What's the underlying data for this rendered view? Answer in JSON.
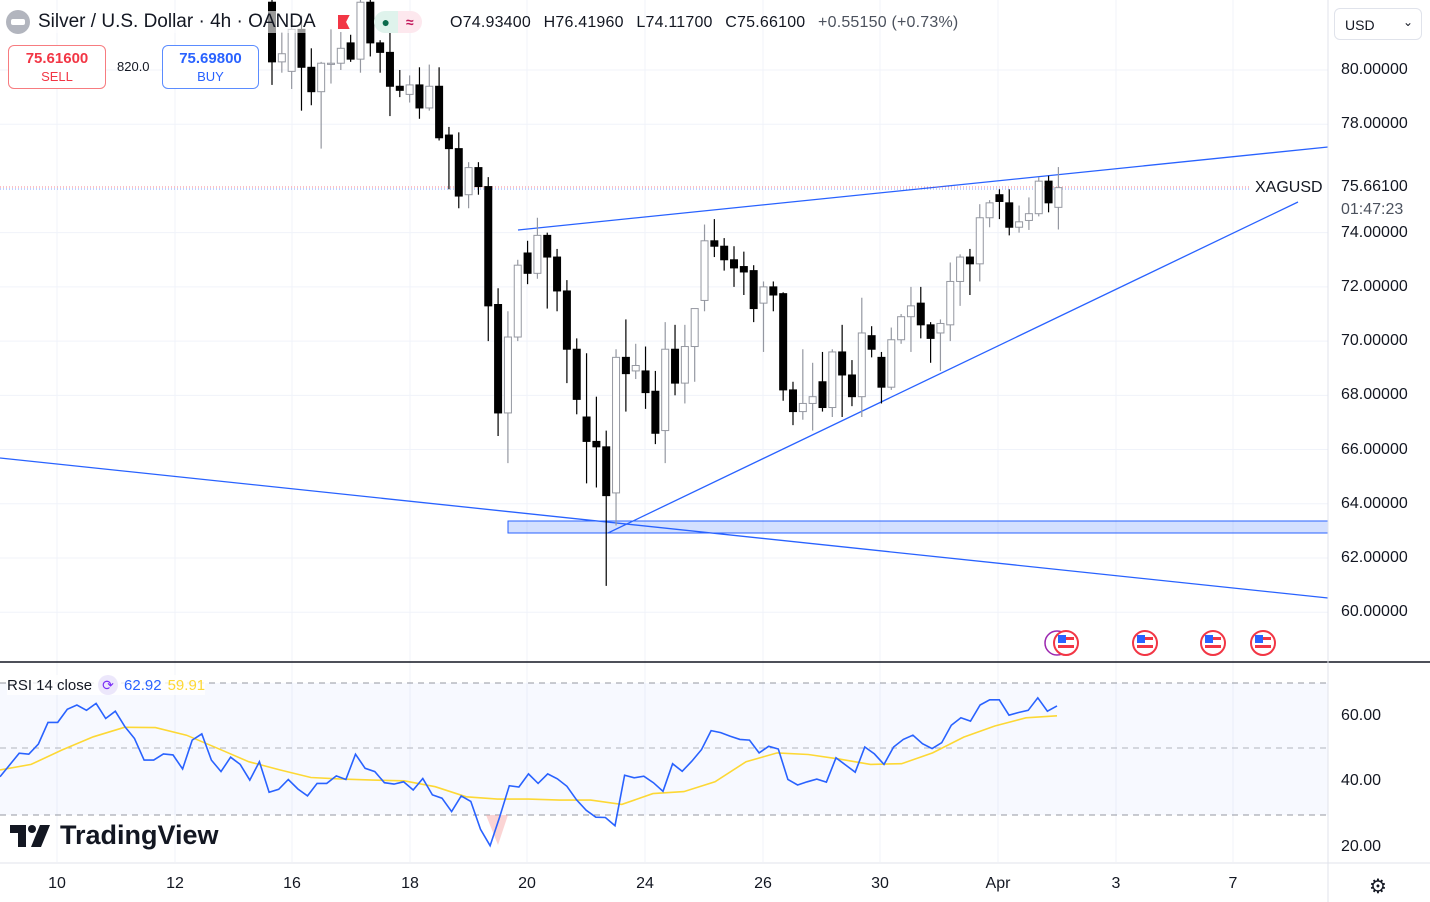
{
  "header": {
    "title": "Silver / U.S. Dollar · 4h · OANDA",
    "open": "O74.93400",
    "high": "H76.41960",
    "low": "L74.11700",
    "close": "C75.66100",
    "change": "+0.55150 (+0.73%)"
  },
  "trade": {
    "sell_price": "75.61600",
    "sell_label": "SELL",
    "spread": "820.0",
    "buy_price": "75.69800",
    "buy_label": "BUY"
  },
  "currency": "USD",
  "price_label": {
    "symbol": "XAGUSD",
    "price": "75.66100",
    "countdown": "01:47:23"
  },
  "rsi_legend": {
    "label": "RSI 14 close",
    "rsi_value": "62.92",
    "ma_value": "59.91"
  },
  "brand": "TradingView",
  "colors": {
    "up_fill": "#ffffff",
    "up_border": "#9598a1",
    "down": "#000000",
    "drawing": "#2962ff",
    "rsi": "#2962ff",
    "rsi_ma": "#fdd835"
  },
  "chart_data": [
    {
      "type": "candlestick",
      "title": "Silver / U.S. Dollar · 4h · OANDA",
      "y_ticks": [
        "80.00000",
        "78.00000",
        "74.00000",
        "72.00000",
        "70.00000",
        "68.00000",
        "66.00000",
        "64.00000",
        "62.00000",
        "60.00000"
      ],
      "y_tick_values": [
        80,
        78,
        74,
        72,
        70,
        68,
        66,
        64,
        62,
        60
      ],
      "x_ticks": [
        "10",
        "12",
        "16",
        "18",
        "20",
        "24",
        "26",
        "30",
        "Apr",
        "3",
        "7"
      ],
      "ylim": [
        59.2,
        82.6
      ],
      "ohlc": [
        [
          82.5,
          82.6,
          79.45,
          80.3
        ],
        [
          80.3,
          81.4,
          79.9,
          80.6
        ],
        [
          79.95,
          82.0,
          79.3,
          81.5
        ],
        [
          81.5,
          82.0,
          78.5,
          80.1
        ],
        [
          80.1,
          80.8,
          78.7,
          79.2
        ],
        [
          79.2,
          80.3,
          77.1,
          80.25
        ],
        [
          80.25,
          81.5,
          79.5,
          80.25
        ],
        [
          80.25,
          81.4,
          80.0,
          80.8
        ],
        [
          81.0,
          81.3,
          80.3,
          80.4
        ],
        [
          80.4,
          82.6,
          79.9,
          82.5
        ],
        [
          82.5,
          82.6,
          80.5,
          81.0
        ],
        [
          81.0,
          81.1,
          79.9,
          80.65
        ],
        [
          80.65,
          81.5,
          78.3,
          79.4
        ],
        [
          79.4,
          80.0,
          79.0,
          79.25
        ],
        [
          79.1,
          79.8,
          78.8,
          79.45
        ],
        [
          79.45,
          80.1,
          78.2,
          78.6
        ],
        [
          78.6,
          80.2,
          78.5,
          79.4
        ],
        [
          79.4,
          80.1,
          77.4,
          77.5
        ],
        [
          77.6,
          77.9,
          75.6,
          77.1
        ],
        [
          77.1,
          77.7,
          74.9,
          75.35
        ],
        [
          75.4,
          76.6,
          74.9,
          76.4
        ],
        [
          76.4,
          76.6,
          75.4,
          75.7
        ],
        [
          75.7,
          76.05,
          70.0,
          71.3
        ],
        [
          71.35,
          71.95,
          66.5,
          67.35
        ],
        [
          67.35,
          71.1,
          65.5,
          70.15
        ],
        [
          70.15,
          73.0,
          70.0,
          72.8
        ],
        [
          73.25,
          73.7,
          72.1,
          72.5
        ],
        [
          72.5,
          74.55,
          72.3,
          73.9
        ],
        [
          73.9,
          74.0,
          71.2,
          73.1
        ],
        [
          73.1,
          73.4,
          71.1,
          71.85
        ],
        [
          71.85,
          72.25,
          68.45,
          69.7
        ],
        [
          69.7,
          70.1,
          67.3,
          67.85
        ],
        [
          67.2,
          69.55,
          64.75,
          66.3
        ],
        [
          66.3,
          67.95,
          64.6,
          66.1
        ],
        [
          66.1,
          66.7,
          60.97,
          64.3
        ],
        [
          64.4,
          69.7,
          63.2,
          69.4
        ],
        [
          69.4,
          70.8,
          67.4,
          68.8
        ],
        [
          68.9,
          69.9,
          68.6,
          69.1
        ],
        [
          68.9,
          69.8,
          67.5,
          68.1
        ],
        [
          68.15,
          68.9,
          66.2,
          66.6
        ],
        [
          66.7,
          70.7,
          65.5,
          69.7
        ],
        [
          69.7,
          70.6,
          68.0,
          68.45
        ],
        [
          68.45,
          70.6,
          67.7,
          69.8
        ],
        [
          69.8,
          71.2,
          68.5,
          71.2
        ],
        [
          71.5,
          74.3,
          71.1,
          73.7
        ],
        [
          73.7,
          74.5,
          73.1,
          73.5
        ],
        [
          73.5,
          73.8,
          72.6,
          73.0
        ],
        [
          73.0,
          73.5,
          72.0,
          72.7
        ],
        [
          72.75,
          73.3,
          71.7,
          72.55
        ],
        [
          72.6,
          72.8,
          70.7,
          71.2
        ],
        [
          71.4,
          72.2,
          69.6,
          72.0
        ],
        [
          72.0,
          72.2,
          71.1,
          71.7
        ],
        [
          71.75,
          71.8,
          67.8,
          68.2
        ],
        [
          68.2,
          68.5,
          66.9,
          67.4
        ],
        [
          67.4,
          69.7,
          67.1,
          67.7
        ],
        [
          67.7,
          69.2,
          66.7,
          67.95
        ],
        [
          68.5,
          69.6,
          67.4,
          67.55
        ],
        [
          67.55,
          69.7,
          67.2,
          69.6
        ],
        [
          69.6,
          70.6,
          67.2,
          68.75
        ],
        [
          68.75,
          69.3,
          67.6,
          67.95
        ],
        [
          67.95,
          71.6,
          67.2,
          70.3
        ],
        [
          70.2,
          70.55,
          69.4,
          69.7
        ],
        [
          69.4,
          69.6,
          67.7,
          68.3
        ],
        [
          68.3,
          70.5,
          68.2,
          70.05
        ],
        [
          70.05,
          71.0,
          69.9,
          70.9
        ],
        [
          70.9,
          72.0,
          69.6,
          71.3
        ],
        [
          71.4,
          72.0,
          70.1,
          70.6
        ],
        [
          70.6,
          70.7,
          69.2,
          70.1
        ],
        [
          70.3,
          70.8,
          68.9,
          70.65
        ],
        [
          70.6,
          72.9,
          70.0,
          72.2
        ],
        [
          72.2,
          73.2,
          71.3,
          73.1
        ],
        [
          73.1,
          73.4,
          71.7,
          72.85
        ],
        [
          72.85,
          75.05,
          72.2,
          74.55
        ],
        [
          74.55,
          75.2,
          74.2,
          75.1
        ],
        [
          75.4,
          75.6,
          74.5,
          75.15
        ],
        [
          75.1,
          75.6,
          73.9,
          74.2
        ],
        [
          74.2,
          75.0,
          74.0,
          74.4
        ],
        [
          74.45,
          75.3,
          74.1,
          74.7
        ],
        [
          74.7,
          76.05,
          74.6,
          75.9
        ],
        [
          75.9,
          76.1,
          74.75,
          75.1
        ],
        [
          74.934,
          76.4196,
          74.117,
          75.661
        ]
      ],
      "last_price": 75.661,
      "zone": {
        "from": 62.9,
        "to": 63.35
      }
    },
    {
      "type": "line",
      "title": "RSI 14 close",
      "y_ticks": [
        "60.00",
        "40.00",
        "20.00"
      ],
      "y_tick_values": [
        60,
        40,
        20
      ],
      "ylim": [
        16,
        77
      ],
      "bands": [
        70,
        50,
        30
      ],
      "series": [
        {
          "name": "RSI",
          "values": [
            41.3,
            44.9,
            48.5,
            48.2,
            51.3,
            57.9,
            57.9,
            61.9,
            63.2,
            61.6,
            63.7,
            59.1,
            61.3,
            56.6,
            53.0,
            46.4,
            46.4,
            48.3,
            48.0,
            43.7,
            52.5,
            54.4,
            46.4,
            42.9,
            47.3,
            45.1,
            40.3,
            45.9,
            36.6,
            37.5,
            40.5,
            37.6,
            35.5,
            39.3,
            39.3,
            41.6,
            40.5,
            48.2,
            43.9,
            42.9,
            39.5,
            39.1,
            39.8,
            37.3,
            40.8,
            35.8,
            34.8,
            30.7,
            35.5,
            33.8,
            25.3,
            20.3,
            29.1,
            38.6,
            38.2,
            42.2,
            39.3,
            42.2,
            40.7,
            38.4,
            34.3,
            31.1,
            29.0,
            28.9,
            26.4,
            41.8,
            41.0,
            41.5,
            39.5,
            36.9,
            45.3,
            43.0,
            46.1,
            49.6,
            55.4,
            54.8,
            53.7,
            52.7,
            52.5,
            48.6,
            50.6,
            49.8,
            40.5,
            38.8,
            39.8,
            40.6,
            39.7,
            47.1,
            44.9,
            42.7,
            50.4,
            48.3,
            45.1,
            50.4,
            52.7,
            54.0,
            51.4,
            49.9,
            51.7,
            57.0,
            59.3,
            58.3,
            63.2,
            64.8,
            64.8,
            60.1,
            60.9,
            61.6,
            65.4,
            61.3,
            62.92
          ]
        },
        {
          "name": "RSI-based MA",
          "values": [
            43.4,
            45.1,
            49.5,
            53.5,
            56.4,
            56.3,
            54.0,
            50.0,
            45.9,
            43.4,
            41.1,
            40.6,
            40.3,
            40.1,
            38.3,
            35.2,
            34.5,
            34.5,
            34.2,
            34.2,
            32.9,
            36.2,
            36.8,
            39.8,
            45.9,
            48.6,
            48.1,
            46.7,
            45.1,
            45.3,
            48.6,
            53.4,
            56.8,
            59.3,
            59.91
          ]
        }
      ]
    }
  ]
}
